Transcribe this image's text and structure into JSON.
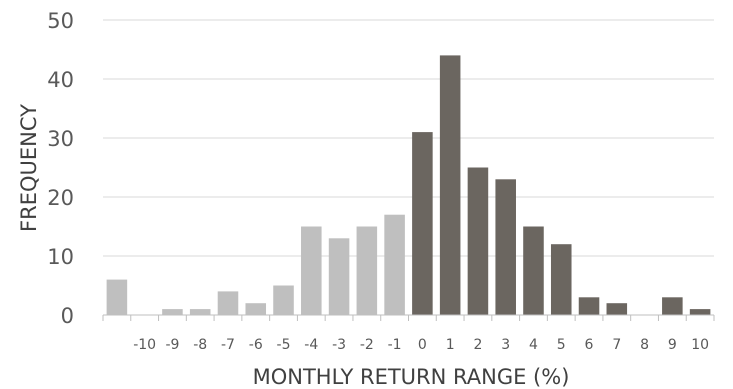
{
  "chart_data": {
    "type": "bar",
    "title": "",
    "xlabel": "MONTHLY RETURN RANGE (%)",
    "ylabel": "FREQUENCY",
    "ylim": [
      0,
      50
    ],
    "yticks": [
      0,
      10,
      20,
      30,
      40,
      50
    ],
    "grid": true,
    "legend": "none",
    "categories": [
      "",
      "-10",
      "-9",
      "-8",
      "-7",
      "-6",
      "-5",
      "-4",
      "-3",
      "-2",
      "-1",
      "0",
      "1",
      "2",
      "3",
      "4",
      "5",
      "6",
      "7",
      "8",
      "9",
      "10"
    ],
    "values": [
      6,
      0,
      1,
      1,
      4,
      2,
      5,
      15,
      13,
      15,
      17,
      31,
      44,
      25,
      23,
      15,
      12,
      3,
      2,
      0,
      3,
      1
    ],
    "colors": {
      "negative_bar": "#bfbfbf",
      "positive_bar": "#6b6660",
      "grid": "#d9d9d9",
      "axis": "#bfbfbf"
    }
  }
}
